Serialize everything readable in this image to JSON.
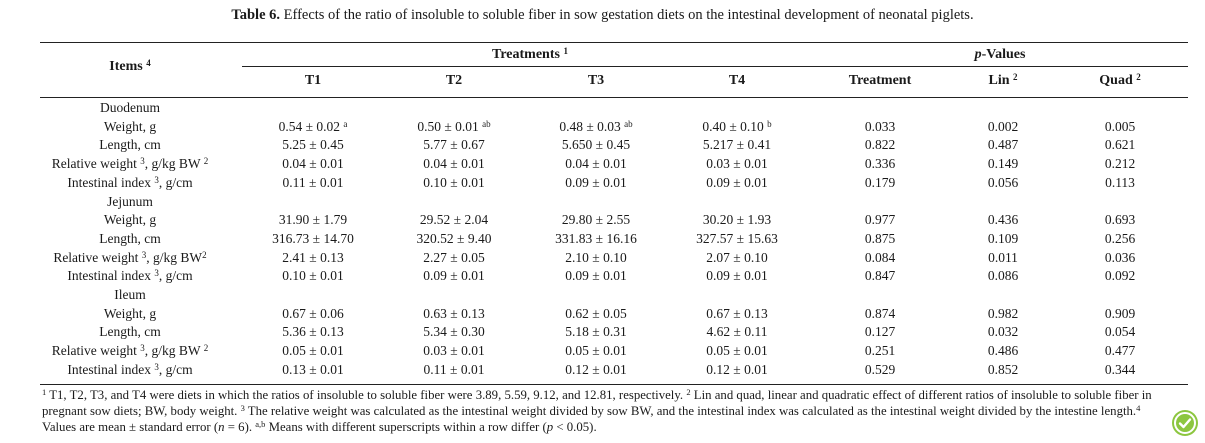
{
  "caption": {
    "label": "Table 6.",
    "text": " Effects of the ratio of insoluble to soluble fiber in sow gestation diets on the intestinal development of neonatal piglets."
  },
  "header": {
    "items": "Items",
    "items_sup": "4",
    "treatments": "Treatments",
    "treatments_sup": "1",
    "pvalues_p": "p",
    "pvalues_rest": "-Values",
    "cols": [
      {
        "label": "T1",
        "sup": ""
      },
      {
        "label": "T2",
        "sup": ""
      },
      {
        "label": "T3",
        "sup": ""
      },
      {
        "label": "T4",
        "sup": ""
      },
      {
        "label": "Treatment",
        "sup": ""
      },
      {
        "label": "Lin",
        "sup": "2"
      },
      {
        "label": "Quad",
        "sup": "2"
      }
    ]
  },
  "rows": [
    {
      "type": "section",
      "label": "Duodenum"
    },
    {
      "type": "data",
      "label": "Weight, g",
      "label_sup": "",
      "label_tail": "",
      "cells": [
        {
          "v": "0.54 ± 0.02",
          "s": "a"
        },
        {
          "v": "0.50 ± 0.01",
          "s": "ab"
        },
        {
          "v": "0.48 ± 0.03",
          "s": "ab"
        },
        {
          "v": "0.40 ± 0.10",
          "s": "b"
        },
        {
          "v": "0.033",
          "s": ""
        },
        {
          "v": "0.002",
          "s": ""
        },
        {
          "v": "0.005",
          "s": ""
        }
      ]
    },
    {
      "type": "data",
      "label": "Length, cm",
      "label_sup": "",
      "label_tail": "",
      "cells": [
        {
          "v": "5.25 ± 0.45",
          "s": ""
        },
        {
          "v": "5.77 ± 0.67",
          "s": ""
        },
        {
          "v": "5.650 ± 0.45",
          "s": ""
        },
        {
          "v": "5.217 ± 0.41",
          "s": ""
        },
        {
          "v": "0.822",
          "s": ""
        },
        {
          "v": "0.487",
          "s": ""
        },
        {
          "v": "0.621",
          "s": ""
        }
      ]
    },
    {
      "type": "data",
      "label": "Relative weight",
      "label_sup": "3",
      "label_tail": ", g/kg BW ",
      "label_tail_sup": "2",
      "cells": [
        {
          "v": "0.04 ± 0.01",
          "s": ""
        },
        {
          "v": "0.04 ± 0.01",
          "s": ""
        },
        {
          "v": "0.04 ± 0.01",
          "s": ""
        },
        {
          "v": "0.03 ± 0.01",
          "s": ""
        },
        {
          "v": "0.336",
          "s": ""
        },
        {
          "v": "0.149",
          "s": ""
        },
        {
          "v": "0.212",
          "s": ""
        }
      ]
    },
    {
      "type": "data",
      "label": "Intestinal index",
      "label_sup": "3",
      "label_tail": ", g/cm",
      "label_tail_sup": "",
      "cells": [
        {
          "v": "0.11 ± 0.01",
          "s": ""
        },
        {
          "v": "0.10 ± 0.01",
          "s": ""
        },
        {
          "v": "0.09 ± 0.01",
          "s": ""
        },
        {
          "v": "0.09 ± 0.01",
          "s": ""
        },
        {
          "v": "0.179",
          "s": ""
        },
        {
          "v": "0.056",
          "s": ""
        },
        {
          "v": "0.113",
          "s": ""
        }
      ]
    },
    {
      "type": "section",
      "label": "Jejunum"
    },
    {
      "type": "data",
      "label": "Weight, g",
      "label_sup": "",
      "label_tail": "",
      "cells": [
        {
          "v": "31.90 ± 1.79",
          "s": ""
        },
        {
          "v": "29.52 ± 2.04",
          "s": ""
        },
        {
          "v": "29.80 ± 2.55",
          "s": ""
        },
        {
          "v": "30.20 ± 1.93",
          "s": ""
        },
        {
          "v": "0.977",
          "s": ""
        },
        {
          "v": "0.436",
          "s": ""
        },
        {
          "v": "0.693",
          "s": ""
        }
      ]
    },
    {
      "type": "data",
      "label": "Length, cm",
      "label_sup": "",
      "label_tail": "",
      "cells": [
        {
          "v": "316.73 ± 14.70",
          "s": ""
        },
        {
          "v": "320.52 ± 9.40",
          "s": ""
        },
        {
          "v": "331.83 ± 16.16",
          "s": ""
        },
        {
          "v": "327.57 ± 15.63",
          "s": ""
        },
        {
          "v": "0.875",
          "s": ""
        },
        {
          "v": "0.109",
          "s": ""
        },
        {
          "v": "0.256",
          "s": ""
        }
      ]
    },
    {
      "type": "data",
      "label": "Relative weight",
      "label_sup": "3",
      "label_tail": ", g/kg BW",
      "label_tail_sup": "2",
      "cells": [
        {
          "v": "2.41 ± 0.13",
          "s": ""
        },
        {
          "v": "2.27 ± 0.05",
          "s": ""
        },
        {
          "v": "2.10 ± 0.10",
          "s": ""
        },
        {
          "v": "2.07 ± 0.10",
          "s": ""
        },
        {
          "v": "0.084",
          "s": ""
        },
        {
          "v": "0.011",
          "s": ""
        },
        {
          "v": "0.036",
          "s": ""
        }
      ]
    },
    {
      "type": "data",
      "label": "Intestinal index",
      "label_sup": "3",
      "label_tail": ", g/cm",
      "label_tail_sup": "",
      "cells": [
        {
          "v": "0.10 ± 0.01",
          "s": ""
        },
        {
          "v": "0.09 ± 0.01",
          "s": ""
        },
        {
          "v": "0.09 ± 0.01",
          "s": ""
        },
        {
          "v": "0.09 ± 0.01",
          "s": ""
        },
        {
          "v": "0.847",
          "s": ""
        },
        {
          "v": "0.086",
          "s": ""
        },
        {
          "v": "0.092",
          "s": ""
        }
      ]
    },
    {
      "type": "section",
      "label": "Ileum"
    },
    {
      "type": "data",
      "label": "Weight, g",
      "label_sup": "",
      "label_tail": "",
      "cells": [
        {
          "v": "0.67 ± 0.06",
          "s": ""
        },
        {
          "v": "0.63 ± 0.13",
          "s": ""
        },
        {
          "v": "0.62 ± 0.05",
          "s": ""
        },
        {
          "v": "0.67 ± 0.13",
          "s": ""
        },
        {
          "v": "0.874",
          "s": ""
        },
        {
          "v": "0.982",
          "s": ""
        },
        {
          "v": "0.909",
          "s": ""
        }
      ]
    },
    {
      "type": "data",
      "label": "Length, cm",
      "label_sup": "",
      "label_tail": "",
      "cells": [
        {
          "v": "5.36 ± 0.13",
          "s": ""
        },
        {
          "v": "5.34 ± 0.30",
          "s": ""
        },
        {
          "v": "5.18 ± 0.31",
          "s": ""
        },
        {
          "v": "4.62 ± 0.11",
          "s": ""
        },
        {
          "v": "0.127",
          "s": ""
        },
        {
          "v": "0.032",
          "s": ""
        },
        {
          "v": "0.054",
          "s": ""
        }
      ]
    },
    {
      "type": "data",
      "label": "Relative weight",
      "label_sup": "3",
      "label_tail": ", g/kg BW ",
      "label_tail_sup": "2",
      "cells": [
        {
          "v": "0.05 ± 0.01",
          "s": ""
        },
        {
          "v": "0.03 ± 0.01",
          "s": ""
        },
        {
          "v": "0.05 ± 0.01",
          "s": ""
        },
        {
          "v": "0.05 ± 0.01",
          "s": ""
        },
        {
          "v": "0.251",
          "s": ""
        },
        {
          "v": "0.486",
          "s": ""
        },
        {
          "v": "0.477",
          "s": ""
        }
      ]
    },
    {
      "type": "data",
      "label": "Intestinal index",
      "label_sup": "3",
      "label_tail": ", g/cm",
      "label_tail_sup": "",
      "cells": [
        {
          "v": "0.13 ± 0.01",
          "s": ""
        },
        {
          "v": "0.11 ± 0.01",
          "s": ""
        },
        {
          "v": "0.12 ± 0.01",
          "s": ""
        },
        {
          "v": "0.12 ± 0.01",
          "s": ""
        },
        {
          "v": "0.529",
          "s": ""
        },
        {
          "v": "0.852",
          "s": ""
        },
        {
          "v": "0.344",
          "s": ""
        }
      ]
    }
  ],
  "footnote": {
    "s1": "1",
    "t1": " T1, T2, T3, and T4 were diets in which the ratios of insoluble to soluble fiber were 3.89, 5.59, 9.12, and 12.81, respectively. ",
    "s2": "2",
    "t2": " Lin and quad, linear and quadratic effect of different ratios of insoluble to soluble fiber in pregnant sow diets; BW, body weight. ",
    "s3": "3",
    "t3": " The relative weight was calculated as the intestinal weight divided by sow BW, and the intestinal index was calculated as the intestinal weight divided by the intestine length.",
    "s4": "4",
    "t4": " Values are mean ± standard error (",
    "n": "n",
    "t5": " = 6). ",
    "s5": "a,b",
    "t6": " Means with different superscripts within a row differ (",
    "p": "p",
    "t7": " < 0.05)."
  },
  "badge_icon": "check-leaf-icon",
  "colors": {
    "badge": "#8cc63f",
    "text": "#1a1a1a"
  }
}
